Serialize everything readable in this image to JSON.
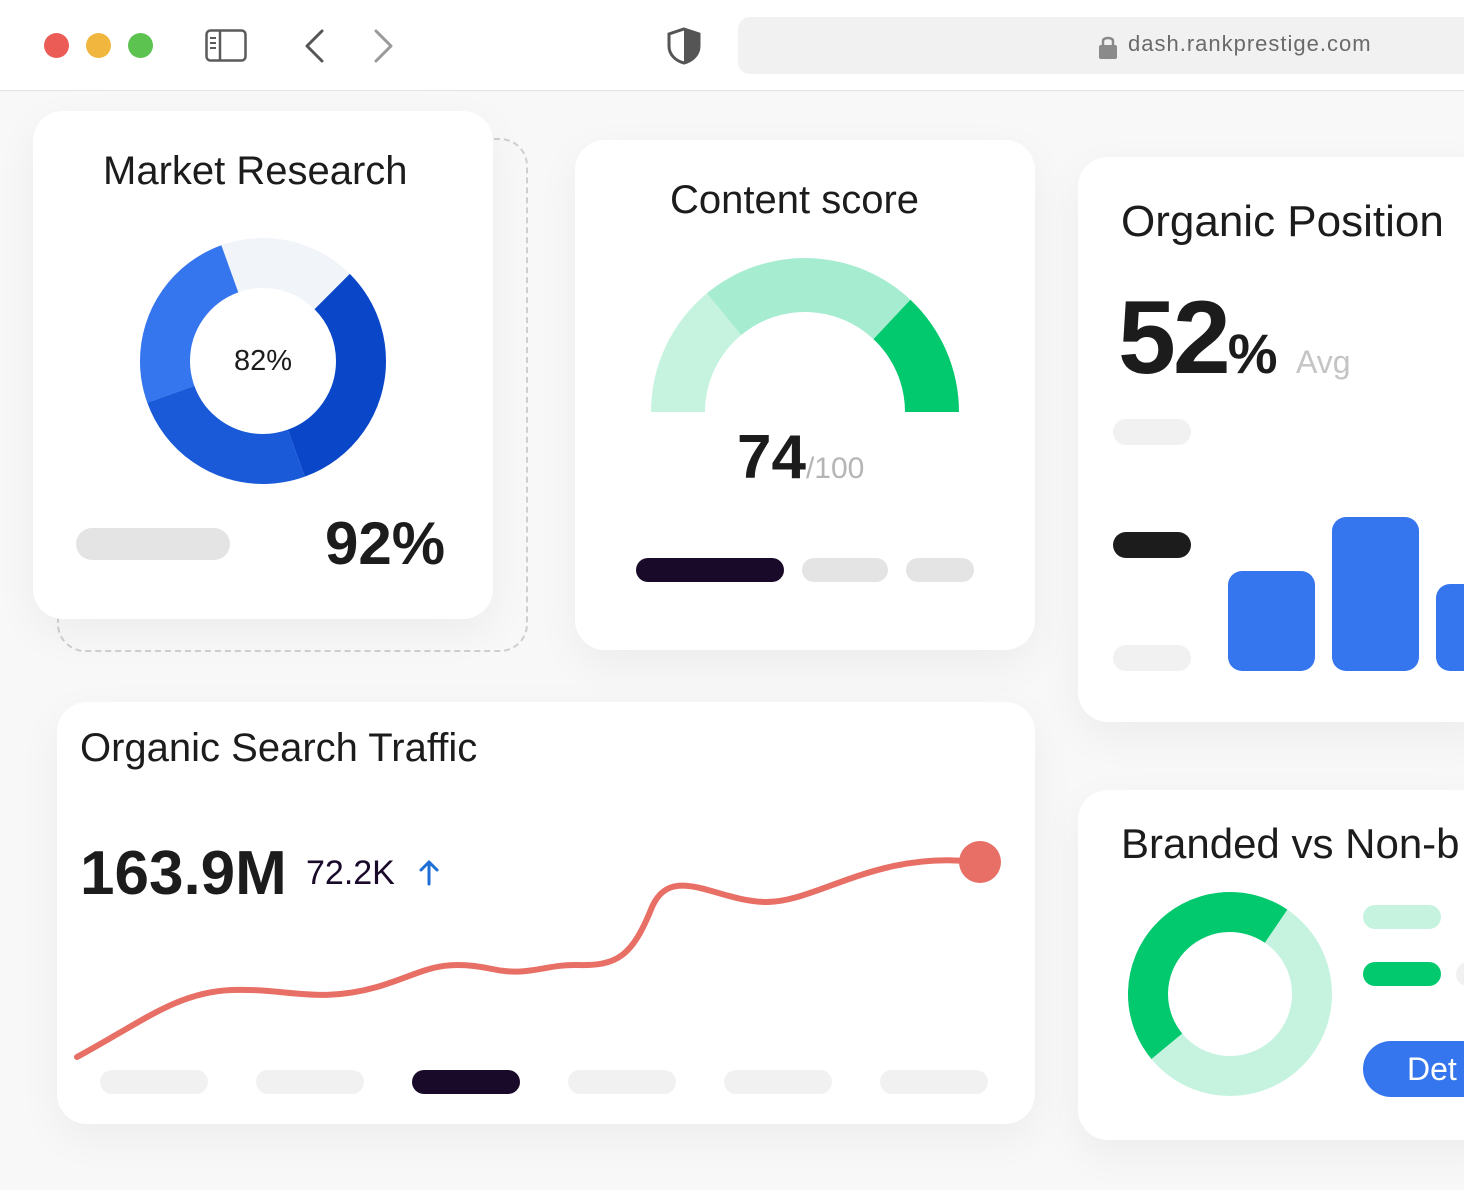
{
  "browser": {
    "url": "dash.rankprestige.com",
    "window_controls": {
      "close_color": "#ec5c56",
      "minimize_color": "#f0b63e",
      "maximize_color": "#5cc351"
    }
  },
  "colors": {
    "blue": "#3575ee",
    "blue_dark": "#0a47c8",
    "green": "#02c86e",
    "green_light": "#a6ecd0",
    "green_pale": "#c6f3e0",
    "line": "#e86f65",
    "dark": "#1a0a2a"
  },
  "market_research": {
    "title": "Market Research",
    "donut_label": "82%",
    "value": "92%",
    "donut_fraction": 0.82
  },
  "content_score": {
    "title": "Content score",
    "score": "74",
    "max": "/100",
    "score_fraction": 0.74
  },
  "organic_position": {
    "title": "Organic Position",
    "value": "52",
    "unit": "%",
    "avg_label": "Avg"
  },
  "organic_traffic": {
    "title": "Organic Search Traffic",
    "value": "163.9M",
    "delta": "72.2K",
    "trend_icon": "arrow-up-icon"
  },
  "branded": {
    "title": "Branded vs Non-b",
    "button_label": "Det"
  }
}
